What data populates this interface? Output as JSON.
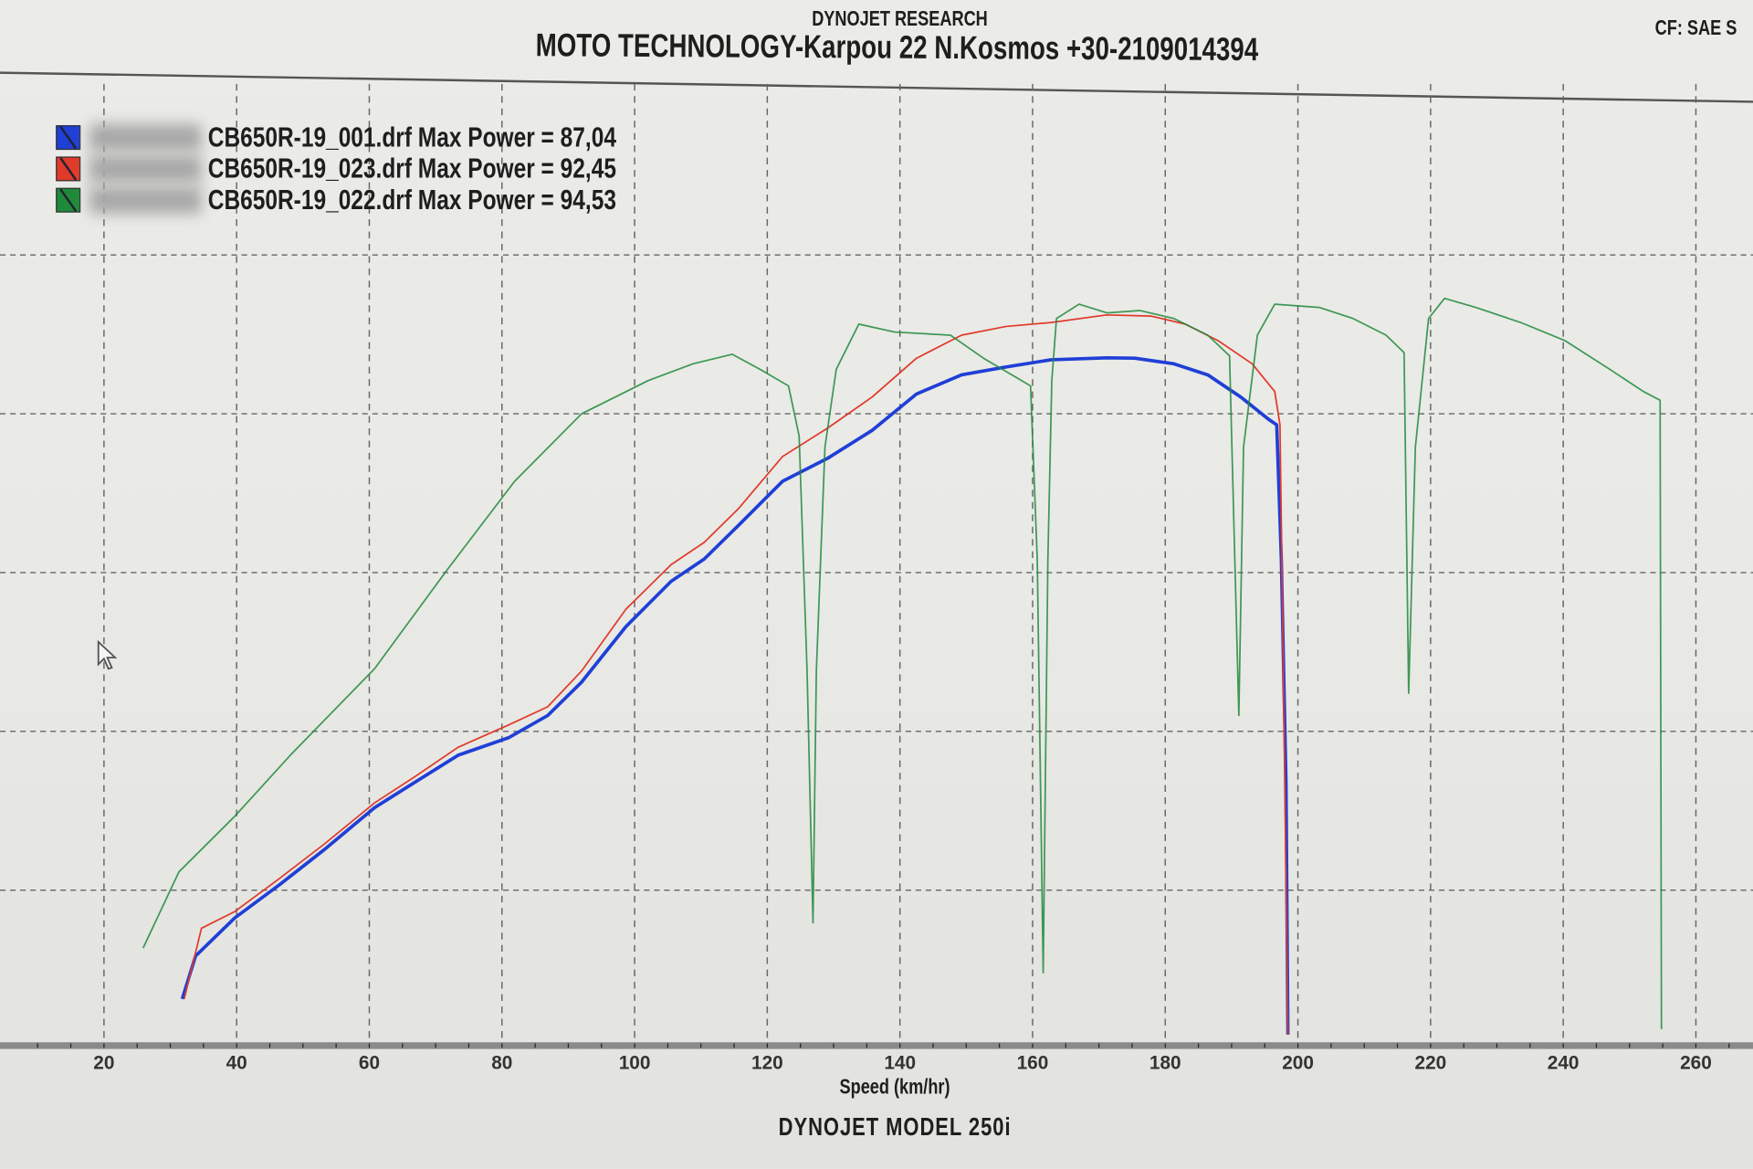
{
  "header": {
    "brand": "DYNOJET RESEARCH",
    "shop": "MOTO TECHNOLOGY-Karpou 22 N.Kosmos +30-2109014394",
    "correction": "CF: SAE S"
  },
  "footer": {
    "model": "DYNOJET  MODEL  250i"
  },
  "legend": [
    {
      "text": "CB650R-19_001.drf Max Power = 87,04",
      "color": "#1f3fd6"
    },
    {
      "text": "CB650R-19_023.drf Max Power = 92,45",
      "color": "#e03a2a"
    },
    {
      "text": "CB650R-19_022.drf Max Power = 94,53",
      "color": "#1f8a3a"
    }
  ],
  "chart_data": {
    "type": "line",
    "xlabel": "Speed (km/hr)",
    "ylabel": "",
    "xlim": [
      10,
      265
    ],
    "ylim": [
      0,
      122
    ],
    "xticks": [
      20,
      40,
      60,
      80,
      100,
      120,
      140,
      160,
      180,
      200,
      220,
      240,
      260
    ],
    "ygrid": [
      20,
      40,
      60,
      80,
      100
    ],
    "grid": true,
    "legend_position": "top-left",
    "series": [
      {
        "name": "CB650R-19_001.drf",
        "color": "#1f3fd6",
        "x": [
          31.8,
          33.8,
          39.7,
          46.5,
          53.2,
          60.8,
          66.7,
          73.4,
          81.0,
          86.9,
          92.0,
          98.7,
          105.5,
          110.5,
          115.6,
          122.3,
          129.1,
          135.8,
          142.5,
          149.3,
          156.0,
          162.8,
          171.2,
          175.4,
          181.3,
          186.4,
          191.4,
          195.6,
          196.8,
          197.5,
          198.2,
          198.5
        ],
        "y": [
          6.3,
          11.7,
          16.5,
          20.7,
          25.1,
          30.4,
          33.5,
          37.0,
          39.2,
          42.0,
          46.2,
          53.2,
          58.9,
          61.7,
          65.9,
          71.5,
          74.4,
          77.9,
          82.5,
          84.9,
          85.9,
          86.8,
          87.04,
          87.0,
          86.3,
          84.9,
          82.1,
          79.3,
          78.6,
          61.7,
          33.5,
          1.8
        ]
      },
      {
        "name": "CB650R-19_023.drf",
        "color": "#e03a2a",
        "x": [
          32.1,
          34.7,
          39.7,
          46.5,
          53.2,
          60.8,
          66.7,
          73.4,
          81.0,
          86.9,
          92.0,
          98.7,
          105.5,
          110.5,
          115.6,
          122.3,
          129.1,
          135.8,
          142.5,
          149.3,
          156.0,
          162.8,
          171.2,
          177.9,
          183.0,
          188.0,
          193.1,
          196.5,
          197.3,
          197.8,
          198.5
        ],
        "y": [
          6.3,
          15.2,
          17.3,
          21.5,
          25.8,
          31.0,
          34.2,
          38.0,
          40.8,
          43.1,
          47.6,
          55.4,
          61.0,
          63.8,
          68.0,
          74.6,
          78.2,
          82.1,
          87.0,
          89.9,
          91.0,
          91.5,
          92.45,
          92.3,
          91.3,
          89.2,
          86.3,
          82.8,
          78.6,
          47.6,
          1.8
        ]
      },
      {
        "name": "CB650R-19_022.drf",
        "color": "#1f8a3a",
        "x": [
          25.9,
          31.3,
          39.7,
          48.1,
          60.8,
          71.7,
          81.9,
          92.0,
          102.1,
          108.8,
          114.7,
          118.9,
          123.2,
          124.8,
          126.0,
          126.9,
          127.4,
          128.7,
          130.4,
          133.8,
          139.2,
          147.6,
          152.6,
          157.7,
          159.7,
          160.7,
          161.6,
          162.3,
          162.9,
          163.6,
          167.0,
          171.2,
          176.2,
          181.3,
          186.4,
          189.7,
          191.1,
          191.8,
          193.9,
          196.5,
          203.2,
          208.3,
          213.3,
          216.0,
          216.7,
          217.7,
          219.7,
          222.1,
          226.8,
          233.6,
          240.3,
          247.0,
          252.1,
          254.6,
          254.8
        ],
        "y": [
          12.7,
          22.3,
          29.3,
          37.0,
          47.9,
          60.3,
          71.5,
          80.0,
          84.2,
          86.3,
          87.5,
          85.6,
          83.5,
          77.2,
          47.6,
          15.9,
          47.6,
          75.8,
          85.6,
          91.3,
          90.3,
          89.9,
          87.0,
          84.5,
          83.5,
          61.7,
          9.6,
          61.7,
          84.2,
          92.0,
          93.8,
          92.7,
          93.0,
          92.0,
          89.9,
          87.3,
          42.0,
          75.8,
          89.9,
          93.8,
          93.4,
          92.0,
          89.9,
          87.7,
          44.8,
          75.8,
          92.0,
          94.53,
          93.4,
          91.5,
          89.2,
          85.6,
          82.8,
          81.7,
          2.5
        ]
      }
    ]
  }
}
